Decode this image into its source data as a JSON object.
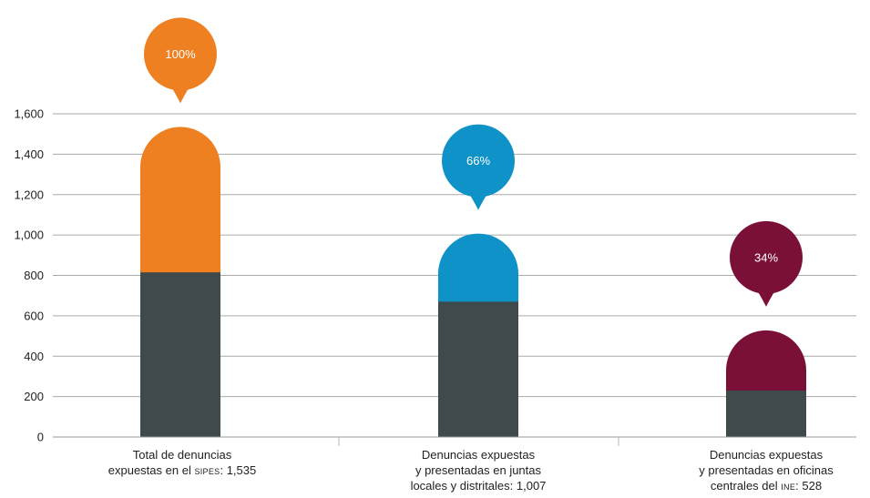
{
  "chart_data": {
    "type": "bar",
    "yticks": [
      0,
      200,
      400,
      600,
      800,
      1000,
      1200,
      1400,
      1600
    ],
    "ytick_labels": [
      "0",
      "200",
      "400",
      "600",
      "800",
      "1,000",
      "1,200",
      "1,400",
      "1,600"
    ],
    "ylim": [
      0,
      1600
    ],
    "grid": true,
    "categories": [
      "Total de denuncias expuestas en el SIPES: 1,535",
      "Denuncias expuestas y presentadas en juntas locales y distritales: 1,007",
      "Denuncias expuestas y presentadas en oficinas centrales del INE: 528"
    ],
    "totals": [
      1535,
      1007,
      528
    ],
    "dark_segment_values": [
      815,
      670,
      230
    ],
    "percent_labels": [
      "100%",
      "66%",
      "34%"
    ],
    "colors": {
      "dark_segment": "#3f4a4d",
      "bars": [
        "#ee8021",
        "#0f92c8",
        "#7a1037"
      ],
      "grid": "#aaaaaa",
      "axis_text": "#222222"
    }
  },
  "labels": {
    "cat0_line1": "Total de denuncias",
    "cat0_line2_pre": "expuestas en el ",
    "cat0_line2_sc": "SIPES",
    "cat0_line2_post": ": 1,535",
    "cat1_line1": "Denuncias expuestas",
    "cat1_line2": "y presentadas en juntas",
    "cat1_line3": "locales y distritales: 1,007",
    "cat2_line1": "Denuncias expuestas",
    "cat2_line2": "y presentadas en oficinas",
    "cat2_line3_pre": "centrales del ",
    "cat2_line3_sc": "INE",
    "cat2_line3_post": ": 528"
  }
}
